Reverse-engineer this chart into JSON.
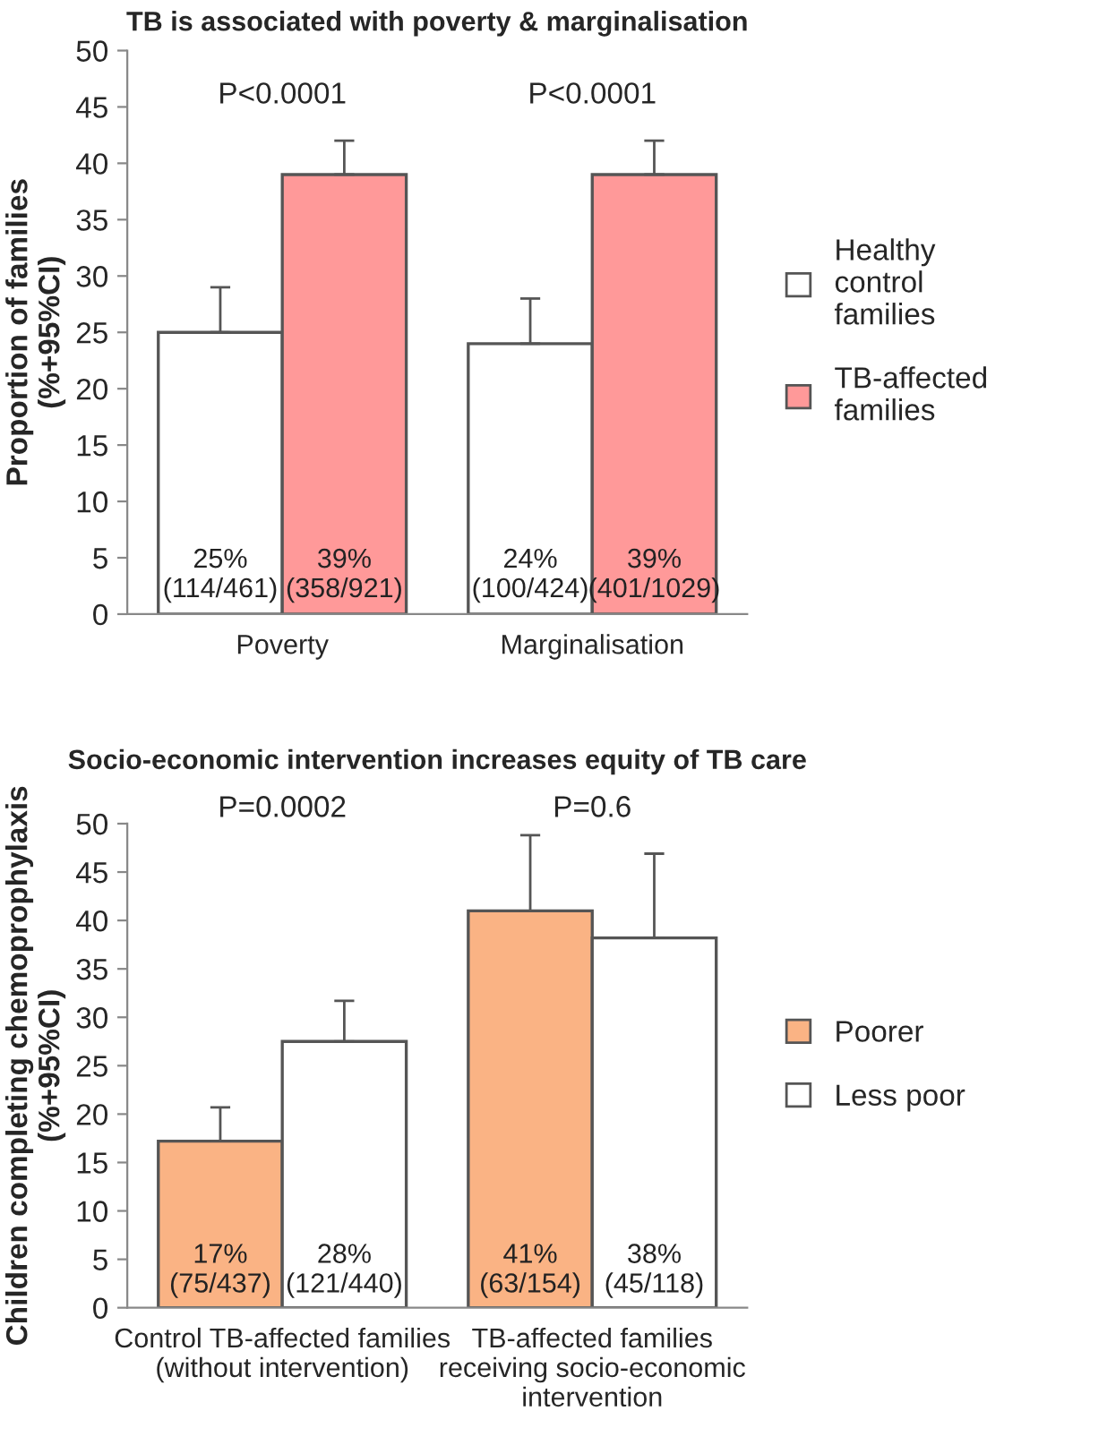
{
  "chart_data": [
    {
      "type": "bar",
      "title": "TB is associated with poverty & marginalisation",
      "ylabel": "Proportion of families\n(%+95%CI)",
      "categories": [
        "Poverty",
        "Marginalisation"
      ],
      "series": [
        {
          "name": "Healthy\ncontrol\nfamilies",
          "color": "#ffffff",
          "values": [
            25,
            24
          ],
          "errors": [
            [
              25,
              29
            ],
            [
              24,
              28
            ]
          ],
          "value_labels": [
            "25%\n(114/461)",
            "24%\n(100/424)"
          ]
        },
        {
          "name": "TB-affected\nfamilies",
          "color": "#ff9999",
          "values": [
            39,
            39
          ],
          "errors": [
            [
              39,
              42
            ],
            [
              39,
              42
            ]
          ],
          "value_labels": [
            "39%\n(358/921)",
            "39%\n(401/1029)"
          ]
        }
      ],
      "ylim": [
        0,
        50
      ],
      "yticks": [
        0,
        5,
        10,
        15,
        20,
        25,
        30,
        35,
        40,
        45,
        50
      ],
      "grid": false,
      "legend": "right",
      "annotations": [
        "P<0.0001",
        "P<0.0001"
      ]
    },
    {
      "type": "bar",
      "title": "Socio-economic intervention increases equity of TB care",
      "ylabel": "Children completing chemoprophylaxis\n(%+95%CI)",
      "categories": [
        "Control TB-affected families\n(without intervention)",
        "TB-affected families\nreceiving socio-economic\nintervention"
      ],
      "series": [
        {
          "name": "Poorer",
          "color": "#fab384",
          "values": [
            17.2,
            41
          ],
          "errors": [
            [
              17.2,
              20.7
            ],
            [
              41,
              48.8
            ]
          ],
          "value_labels": [
            "17%\n(75/437)",
            "41%\n(63/154)"
          ]
        },
        {
          "name": "Less poor",
          "color": "#ffffff",
          "values": [
            27.5,
            38.2
          ],
          "errors": [
            [
              27.5,
              31.7
            ],
            [
              38.2,
              46.9
            ]
          ],
          "value_labels": [
            "28%\n(121/440)",
            "38%\n(45/118)"
          ]
        }
      ],
      "ylim": [
        0,
        50
      ],
      "yticks": [
        0,
        5,
        10,
        15,
        20,
        25,
        30,
        35,
        40,
        45,
        50
      ],
      "grid": false,
      "legend": "right",
      "annotations": [
        "P=0.0002",
        "P=0.6"
      ]
    }
  ]
}
